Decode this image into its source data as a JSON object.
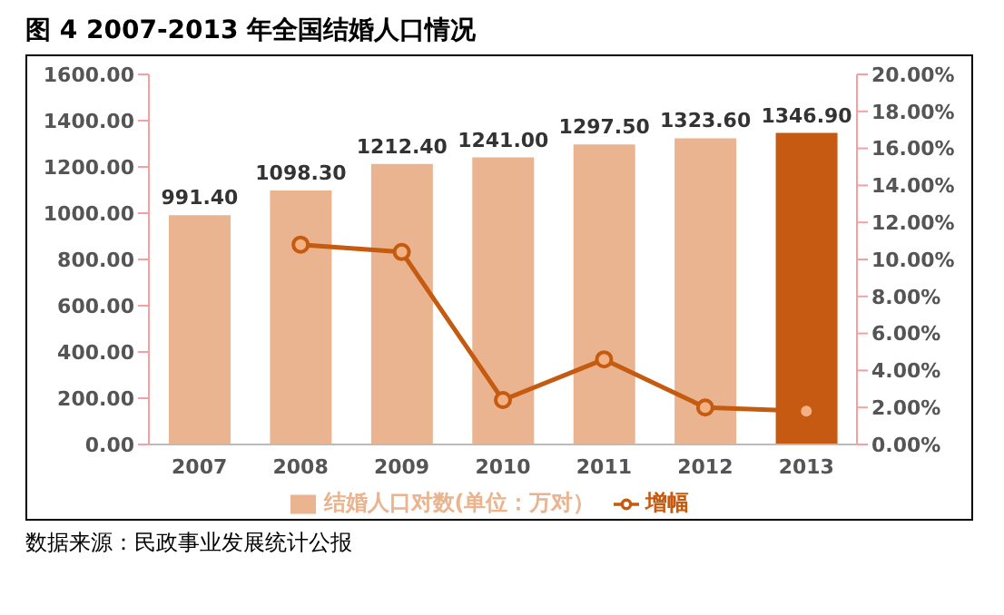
{
  "chart_data": {
    "type": "bar",
    "title": "图 4  2007-2013 年全国结婚人口情况",
    "categories": [
      "2007",
      "2008",
      "2009",
      "2010",
      "2011",
      "2012",
      "2013"
    ],
    "series": [
      {
        "name": "结婚人口对数(单位：万对）",
        "color": "#e9b48f",
        "colors": [
          "#e9b48f",
          "#e9b48f",
          "#e9b48f",
          "#e9b48f",
          "#e9b48f",
          "#e9b48f",
          "#c65a12"
        ],
        "values": [
          991.4,
          1098.3,
          1212.4,
          1241.0,
          1297.5,
          1323.6,
          1346.9
        ],
        "value_labels": [
          "991.40",
          "1098.30",
          "1212.40",
          "1241.00",
          "1297.50",
          "1323.60",
          "1346.90"
        ]
      },
      {
        "name": "增幅",
        "type": "line",
        "axis": "y2",
        "color": "#c55a11",
        "values": [
          null,
          10.8,
          10.4,
          2.4,
          4.6,
          2.0,
          1.8
        ]
      }
    ],
    "ylim": [
      0,
      1600
    ],
    "yticks": [
      {
        "value": 0,
        "label": "0.00"
      },
      {
        "value": 200,
        "label": "200.00"
      },
      {
        "value": 400,
        "label": "400.00"
      },
      {
        "value": 600,
        "label": "600.00"
      },
      {
        "value": 800,
        "label": "800.00"
      },
      {
        "value": 1000,
        "label": "1000.00"
      },
      {
        "value": 1200,
        "label": "1200.00"
      },
      {
        "value": 1400,
        "label": "1400.00"
      },
      {
        "value": 1600,
        "label": "1600.00"
      }
    ],
    "y2lim": [
      0,
      20
    ],
    "y2ticks": [
      {
        "value": 0,
        "label": "0.00%"
      },
      {
        "value": 2,
        "label": "2.00%"
      },
      {
        "value": 4,
        "label": "4.00%"
      },
      {
        "value": 6,
        "label": "6.00%"
      },
      {
        "value": 8,
        "label": "8.00%"
      },
      {
        "value": 10,
        "label": "10.00%"
      },
      {
        "value": 12,
        "label": "12.00%"
      },
      {
        "value": 14,
        "label": "14.00%"
      },
      {
        "value": 16,
        "label": "16.00%"
      },
      {
        "value": 18,
        "label": "18.00%"
      },
      {
        "value": 20,
        "label": "20.00%"
      }
    ],
    "grid": false,
    "legend": "bottom",
    "marker": "circle",
    "line_style": "solid",
    "annotations": [
      "数据来源：民政事业发展统计公报"
    ]
  }
}
